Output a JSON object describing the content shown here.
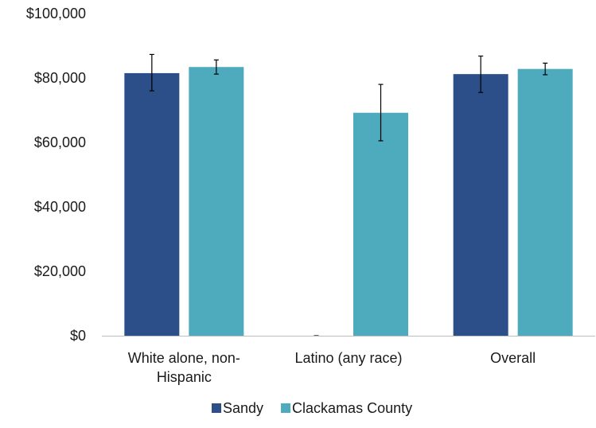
{
  "colors": {
    "sandy": "#2c4f8a",
    "clackamas": "#4dabbd",
    "axis": "#bfbfbf",
    "error_bar": "#000000"
  },
  "chart_data": {
    "type": "bar",
    "title": "",
    "xlabel": "",
    "ylabel": "",
    "ylim": [
      0,
      100000
    ],
    "yticks": [
      0,
      20000,
      40000,
      60000,
      80000,
      100000
    ],
    "ytick_labels": [
      "$0",
      "$20,000",
      "$40,000",
      "$60,000",
      "$80,000",
      "$100,000"
    ],
    "categories": [
      [
        "White alone, non-",
        "Hispanic"
      ],
      [
        "Latino (any race)"
      ],
      [
        "Overall"
      ]
    ],
    "series": [
      {
        "name": "Sandy",
        "color": "#2c4f8a",
        "values": [
          81500,
          0,
          81200
        ],
        "error_low": [
          76000,
          0,
          75500
        ],
        "error_high": [
          87300,
          0,
          86800
        ]
      },
      {
        "name": "Clackamas County",
        "color": "#4dabbd",
        "values": [
          83400,
          69200,
          82800
        ],
        "error_low": [
          81200,
          60500,
          81000
        ],
        "error_high": [
          85600,
          78000,
          84600
        ]
      }
    ],
    "grid": false,
    "legend": "bottom"
  }
}
